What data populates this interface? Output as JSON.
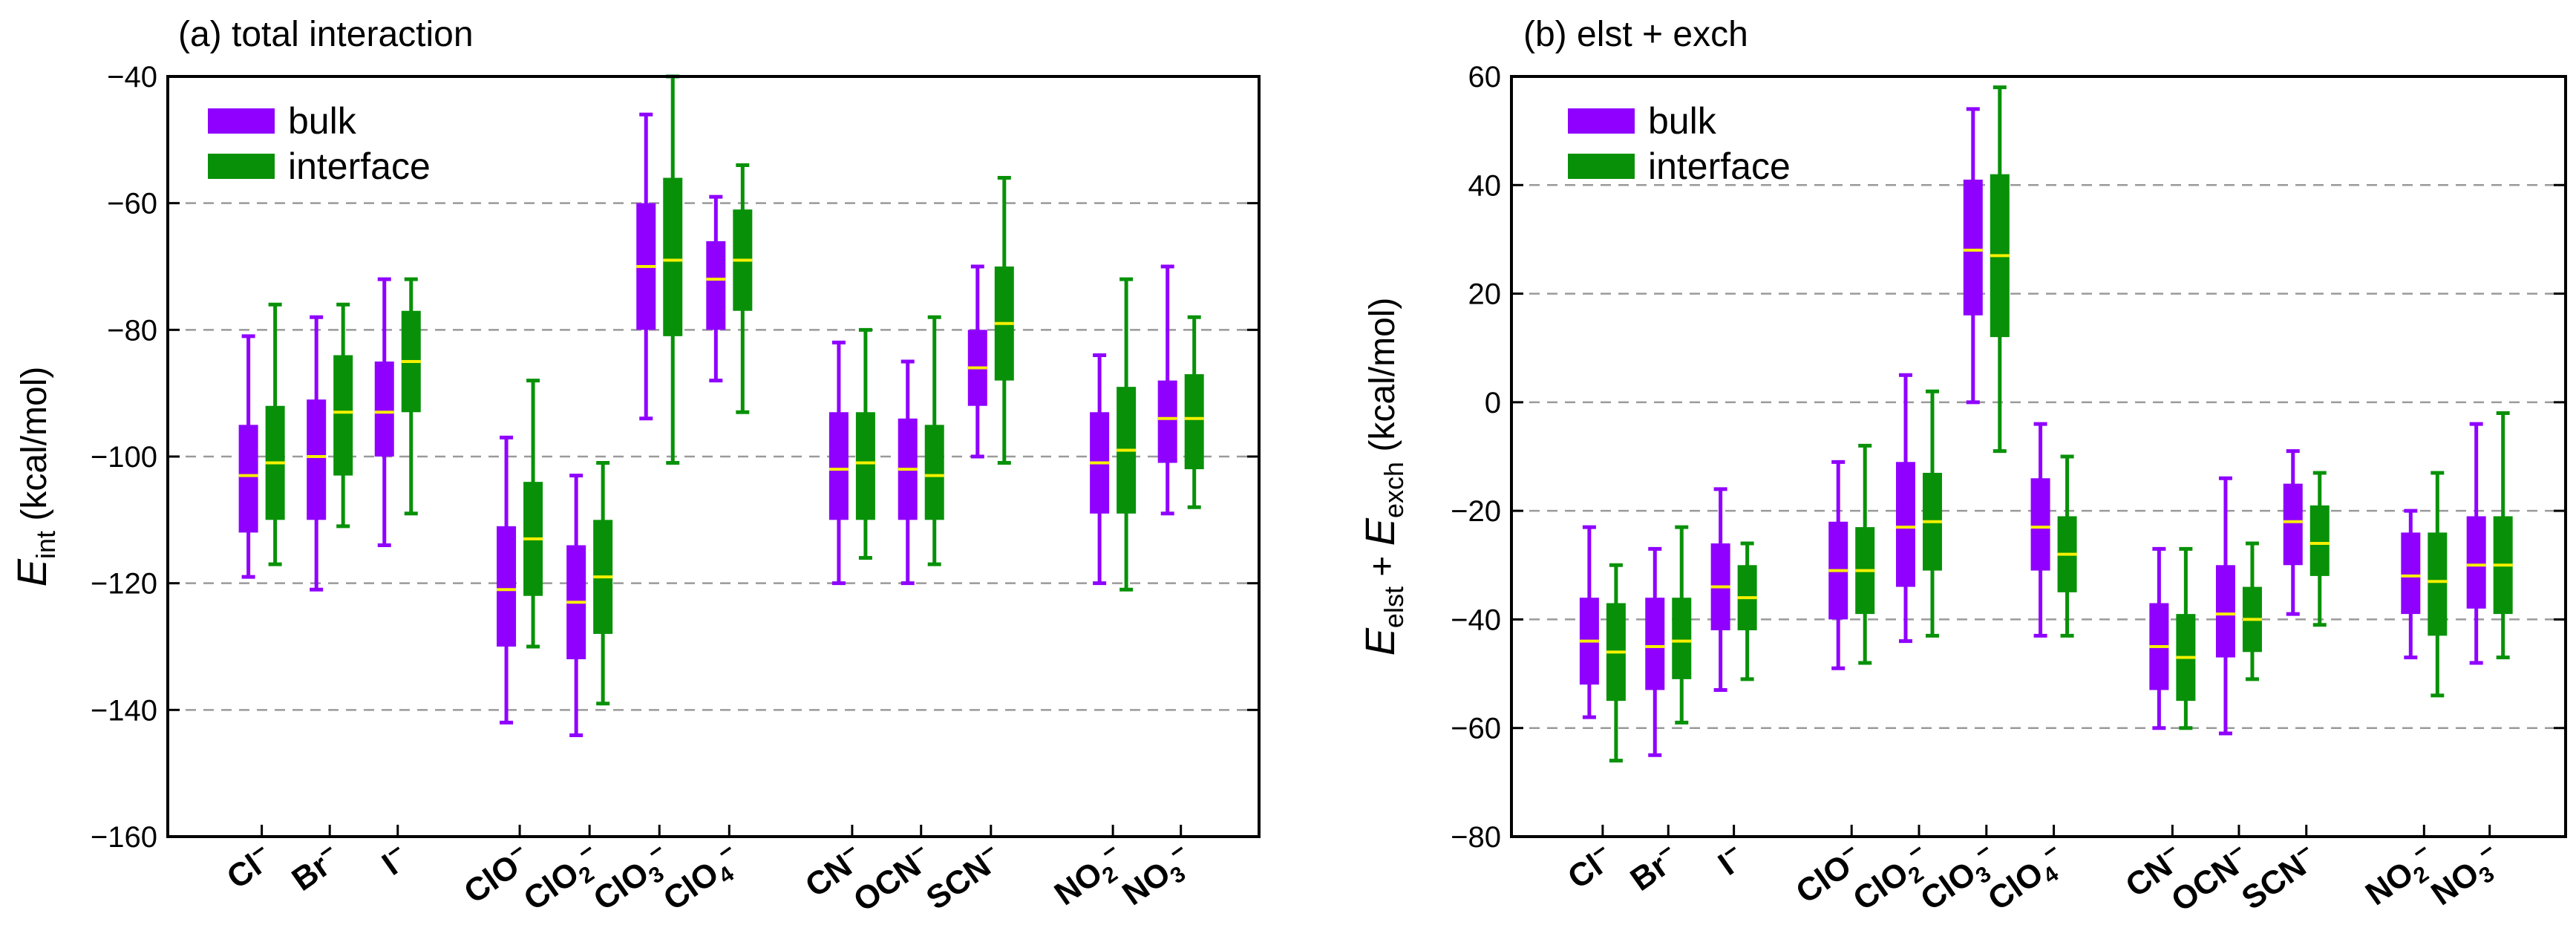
{
  "colors": {
    "bulk": "#8f00ff",
    "interface": "#089108",
    "median": "#f7f000",
    "grid": "#9a9a9a"
  },
  "legend": {
    "items": [
      "bulk",
      "interface"
    ],
    "placement": "top-left"
  },
  "categories": [
    {
      "base": "Cl",
      "sub": "",
      "sup": "−"
    },
    {
      "base": "Br",
      "sub": "",
      "sup": "−"
    },
    {
      "base": "I",
      "sub": "",
      "sup": "−"
    },
    {
      "base": "ClO",
      "sub": "",
      "sup": "−"
    },
    {
      "base": "ClO",
      "sub": "2",
      "sup": "−"
    },
    {
      "base": "ClO",
      "sub": "3",
      "sup": "−"
    },
    {
      "base": "ClO",
      "sub": "4",
      "sup": "−"
    },
    {
      "base": "CN",
      "sub": "",
      "sup": "−"
    },
    {
      "base": "OCN",
      "sub": "",
      "sup": "−"
    },
    {
      "base": "SCN",
      "sub": "",
      "sup": "−"
    },
    {
      "base": "NO",
      "sub": "2",
      "sup": "−"
    },
    {
      "base": "NO",
      "sub": "3",
      "sup": "−"
    }
  ],
  "chart_data": [
    {
      "type": "box",
      "title": "(a) total interaction",
      "ylabel": {
        "main": "E",
        "sub": "int",
        "rest": " (kcal/mol)"
      },
      "ylim": [
        -160,
        -40
      ],
      "yticks": [
        "-160",
        "-140",
        "-120",
        "-100",
        "-80",
        "-60",
        "-40"
      ],
      "grid_y": [
        -140,
        -120,
        -100,
        -80,
        -60
      ],
      "series": [
        {
          "name": "bulk",
          "boxes": [
            {
              "min": -119,
              "q1": -112,
              "median": -103,
              "q3": -95,
              "max": -81
            },
            {
              "min": -121,
              "q1": -110,
              "median": -100,
              "q3": -91,
              "max": -78
            },
            {
              "min": -114,
              "q1": -100,
              "median": -93,
              "q3": -85,
              "max": -72
            },
            {
              "min": -142,
              "q1": -130,
              "median": -121,
              "q3": -111,
              "max": -97
            },
            {
              "min": -144,
              "q1": -132,
              "median": -123,
              "q3": -114,
              "max": -103
            },
            {
              "min": -94,
              "q1": -80,
              "median": -70,
              "q3": -60,
              "max": -46
            },
            {
              "min": -88,
              "q1": -80,
              "median": -72,
              "q3": -66,
              "max": -59
            },
            {
              "min": -120,
              "q1": -110,
              "median": -102,
              "q3": -93,
              "max": -82
            },
            {
              "min": -120,
              "q1": -110,
              "median": -102,
              "q3": -94,
              "max": -85
            },
            {
              "min": -100,
              "q1": -92,
              "median": -86,
              "q3": -80,
              "max": -70
            },
            {
              "min": -120,
              "q1": -109,
              "median": -101,
              "q3": -93,
              "max": -84
            },
            {
              "min": -109,
              "q1": -101,
              "median": -94,
              "q3": -88,
              "max": -70
            }
          ]
        },
        {
          "name": "interface",
          "boxes": [
            {
              "min": -117,
              "q1": -110,
              "median": -101,
              "q3": -92,
              "max": -76
            },
            {
              "min": -111,
              "q1": -103,
              "median": -93,
              "q3": -84,
              "max": -76
            },
            {
              "min": -109,
              "q1": -93,
              "median": -85,
              "q3": -77,
              "max": -72
            },
            {
              "min": -130,
              "q1": -122,
              "median": -113,
              "q3": -104,
              "max": -88
            },
            {
              "min": -139,
              "q1": -128,
              "median": -119,
              "q3": -110,
              "max": -101
            },
            {
              "min": -101,
              "q1": -81,
              "median": -69,
              "q3": -56,
              "max": -40
            },
            {
              "min": -93,
              "q1": -77,
              "median": -69,
              "q3": -61,
              "max": -54
            },
            {
              "min": -116,
              "q1": -110,
              "median": -101,
              "q3": -93,
              "max": -80
            },
            {
              "min": -117,
              "q1": -110,
              "median": -103,
              "q3": -95,
              "max": -78
            },
            {
              "min": -101,
              "q1": -88,
              "median": -79,
              "q3": -70,
              "max": -56
            },
            {
              "min": -121,
              "q1": -109,
              "median": -99,
              "q3": -89,
              "max": -72
            },
            {
              "min": -108,
              "q1": -102,
              "median": -94,
              "q3": -87,
              "max": -78
            }
          ]
        }
      ]
    },
    {
      "type": "box",
      "title": "(b) elst + exch",
      "ylabel": {
        "main": "E",
        "sub": "elst",
        "plus": " + ",
        "main2": "E",
        "sub2": "exch",
        "rest": " (kcal/mol)"
      },
      "ylim": [
        -80,
        60
      ],
      "yticks": [
        "-80",
        "-60",
        "-40",
        "-20",
        "0",
        "20",
        "40",
        "60"
      ],
      "grid_y": [
        -60,
        -40,
        -20,
        0,
        20,
        40
      ],
      "series": [
        {
          "name": "bulk",
          "boxes": [
            {
              "min": -58,
              "q1": -52,
              "median": -44,
              "q3": -36,
              "max": -23
            },
            {
              "min": -65,
              "q1": -53,
              "median": -45,
              "q3": -36,
              "max": -27
            },
            {
              "min": -53,
              "q1": -42,
              "median": -34,
              "q3": -26,
              "max": -16
            },
            {
              "min": -49,
              "q1": -40,
              "median": -31,
              "q3": -22,
              "max": -11
            },
            {
              "min": -44,
              "q1": -34,
              "median": -23,
              "q3": -11,
              "max": 5
            },
            {
              "min": 0,
              "q1": 16,
              "median": 28,
              "q3": 41,
              "max": 54
            },
            {
              "min": -43,
              "q1": -31,
              "median": -23,
              "q3": -14,
              "max": -4
            },
            {
              "min": -60,
              "q1": -53,
              "median": -45,
              "q3": -37,
              "max": -27
            },
            {
              "min": -61,
              "q1": -47,
              "median": -39,
              "q3": -30,
              "max": -14
            },
            {
              "min": -39,
              "q1": -30,
              "median": -22,
              "q3": -15,
              "max": -9
            },
            {
              "min": -47,
              "q1": -39,
              "median": -32,
              "q3": -24,
              "max": -20
            },
            {
              "min": -48,
              "q1": -38,
              "median": -30,
              "q3": -21,
              "max": -4
            }
          ]
        },
        {
          "name": "interface",
          "boxes": [
            {
              "min": -66,
              "q1": -55,
              "median": -46,
              "q3": -37,
              "max": -30
            },
            {
              "min": -59,
              "q1": -51,
              "median": -44,
              "q3": -36,
              "max": -23
            },
            {
              "min": -51,
              "q1": -42,
              "median": -36,
              "q3": -30,
              "max": -26
            },
            {
              "min": -48,
              "q1": -39,
              "median": -31,
              "q3": -23,
              "max": -8
            },
            {
              "min": -43,
              "q1": -31,
              "median": -22,
              "q3": -13,
              "max": 2
            },
            {
              "min": -9,
              "q1": 12,
              "median": 27,
              "q3": 42,
              "max": 58
            },
            {
              "min": -43,
              "q1": -35,
              "median": -28,
              "q3": -21,
              "max": -10
            },
            {
              "min": -60,
              "q1": -55,
              "median": -47,
              "q3": -39,
              "max": -27
            },
            {
              "min": -51,
              "q1": -46,
              "median": -40,
              "q3": -34,
              "max": -26
            },
            {
              "min": -41,
              "q1": -32,
              "median": -26,
              "q3": -19,
              "max": -13
            },
            {
              "min": -54,
              "q1": -43,
              "median": -33,
              "q3": -24,
              "max": -13
            },
            {
              "min": -47,
              "q1": -39,
              "median": -30,
              "q3": -21,
              "max": -2
            }
          ]
        }
      ]
    }
  ]
}
